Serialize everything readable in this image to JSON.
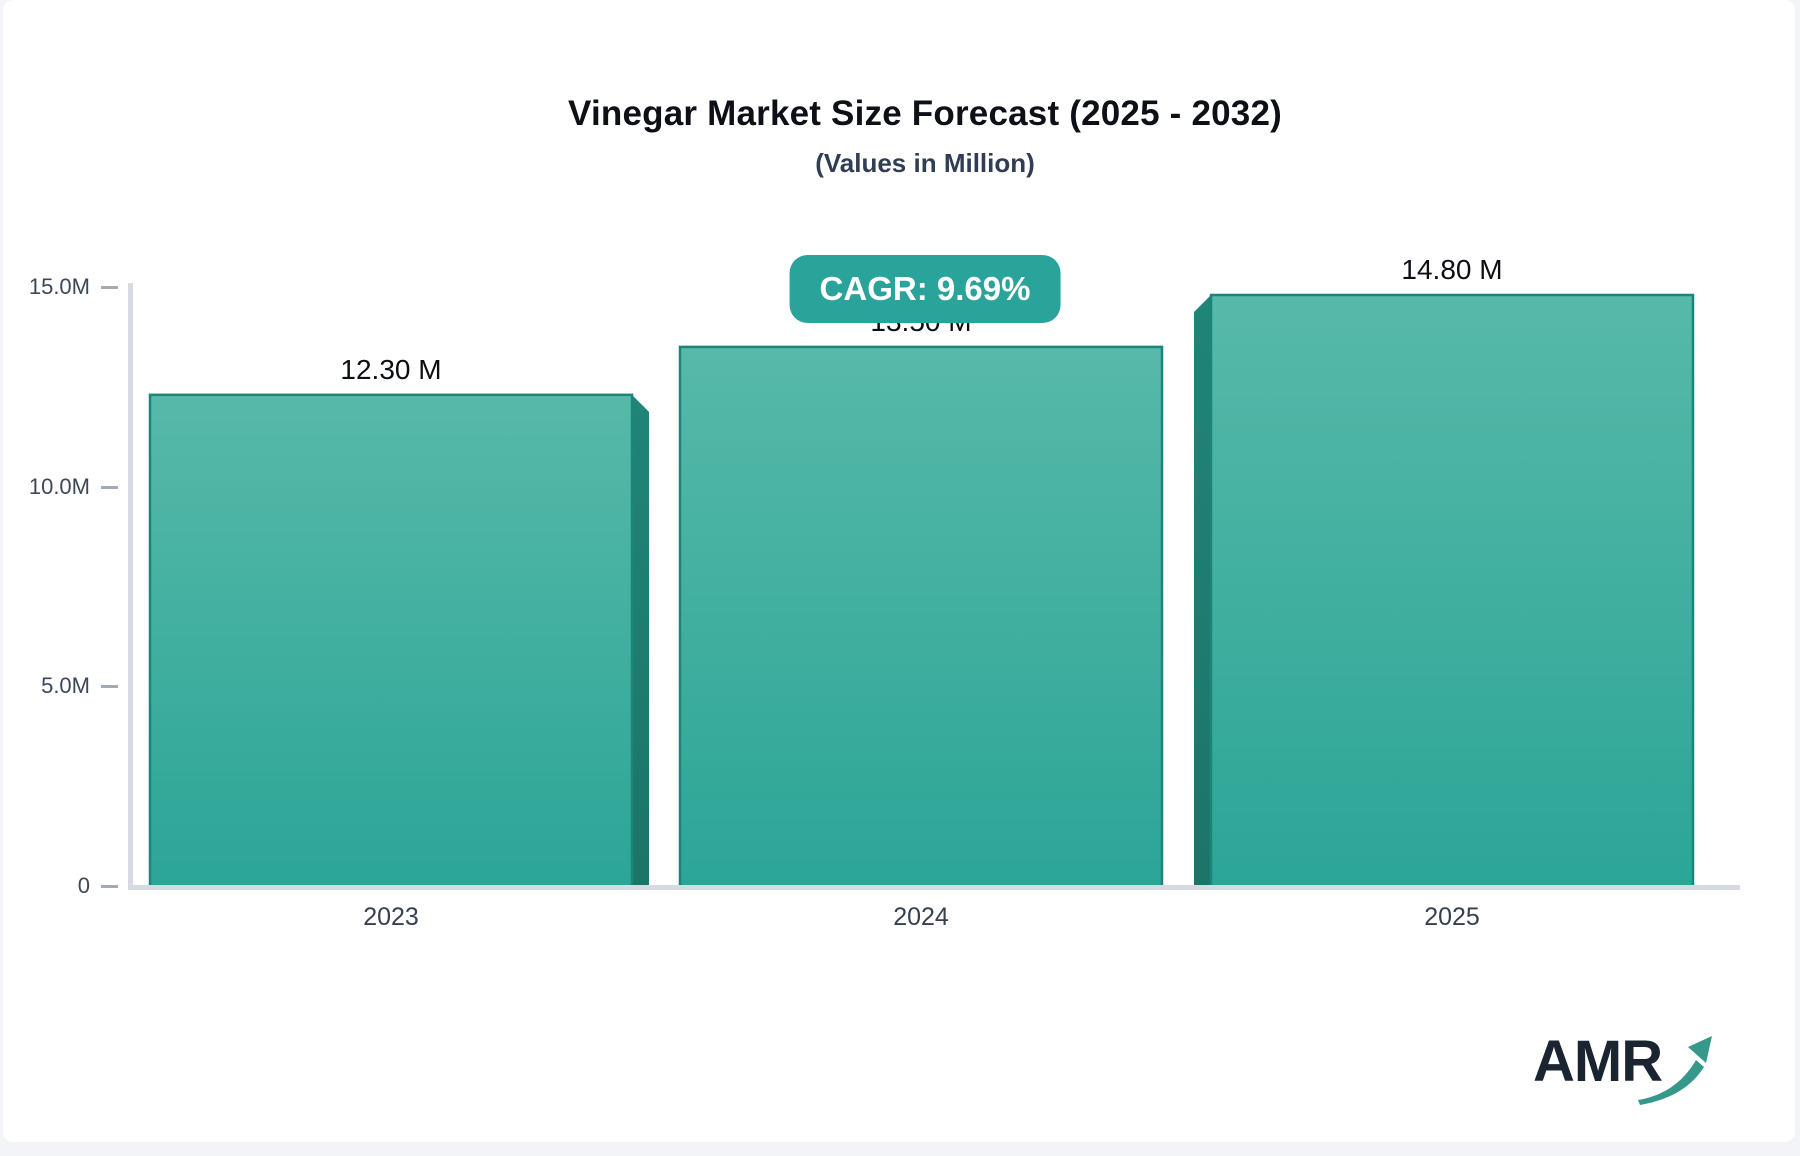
{
  "title": "Vinegar Market Size Forecast (2025 - 2032)",
  "subtitle": "(Values in Million)",
  "badge": {
    "label": "CAGR: 9.69%",
    "color": "#2aa49a"
  },
  "logo": {
    "text": "AMR"
  },
  "colors": {
    "bar_face_top": "#57b9a9",
    "bar_face_bottom": "#2ba597",
    "bar_side_top": "#218478",
    "bar_side_bottom": "#1b7568",
    "bar_edge": "#1a8578",
    "axis_line": "#d7dbe1",
    "tick_label": "#3d4757",
    "value_label": "#0b0f14",
    "category_label": "#36404e",
    "badge_bg": "#2aa49a",
    "badge_text": "#ffffff"
  },
  "chart_data": {
    "type": "bar",
    "title": "Vinegar Market Size Forecast (2025 - 2032)",
    "subtitle": "(Values in Million)",
    "categories": [
      "2023",
      "2024",
      "2025"
    ],
    "values": [
      12.3,
      13.5,
      14.8
    ],
    "value_labels": [
      "12.30 M",
      "13.50 M",
      "14.80 M"
    ],
    "unit": "Million",
    "annotation": "CAGR: 9.69%",
    "ylim": [
      0,
      15
    ],
    "yticks": [
      {
        "value": 0,
        "label": "0"
      },
      {
        "value": 5,
        "label": "5.0M"
      },
      {
        "value": 10,
        "label": "10.0M"
      },
      {
        "value": 15,
        "label": "15.0M"
      }
    ],
    "grid": false,
    "legend": false,
    "xlabel": "",
    "ylabel": ""
  }
}
